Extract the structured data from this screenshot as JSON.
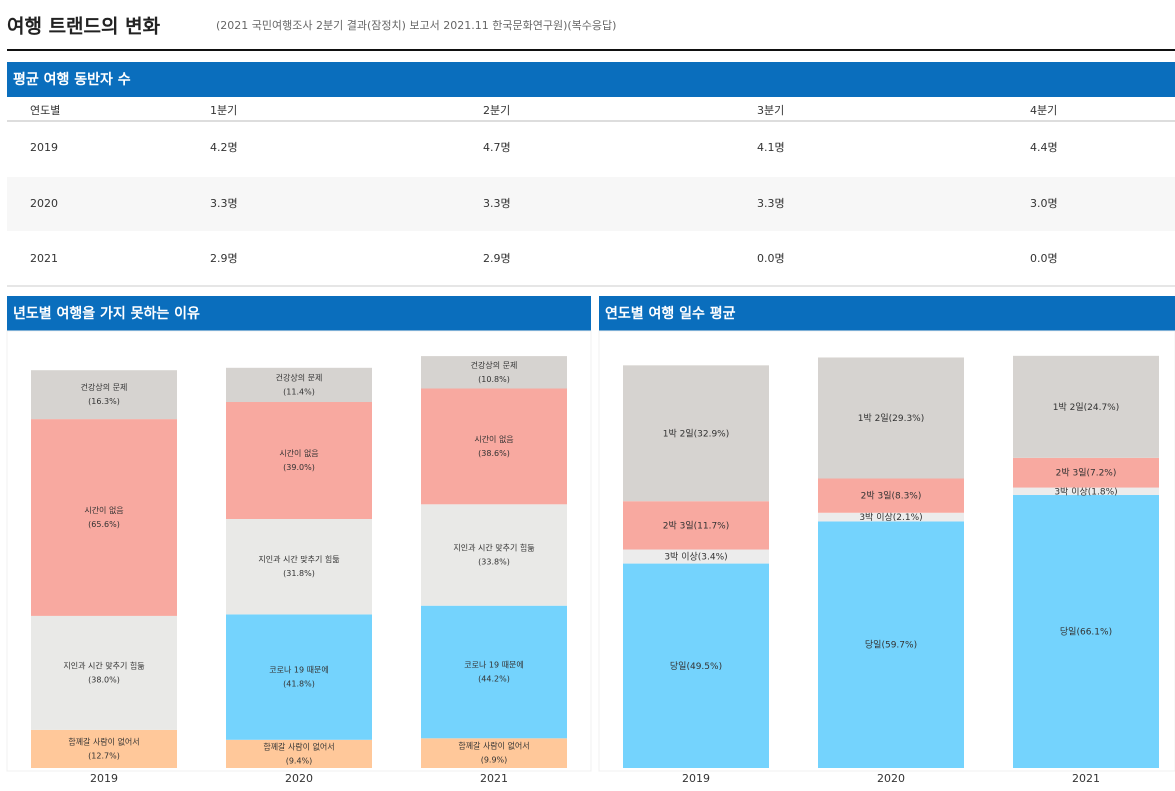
{
  "header": {
    "title": "여행 트랜드의 변화",
    "subtitle": "(2021 국민여행조사 2분기 결과(잠정치) 보고서 2021.11 한국문화연구원)(복수응답)"
  },
  "table": {
    "title": "평균 여행 동반자 수",
    "columns": [
      "연도별",
      "1분기",
      "2분기",
      "3분기",
      "4분기"
    ],
    "rows": [
      [
        "2019",
        "4.2명",
        "4.7명",
        "4.1명",
        "4.4명"
      ],
      [
        "2020",
        "3.3명",
        "3.3명",
        "3.3명",
        "3.0명"
      ],
      [
        "2021",
        "2.9명",
        "2.9명",
        "0.0명",
        "0.0명"
      ]
    ]
  },
  "chart_data": [
    {
      "type": "bar",
      "stacked": true,
      "title": "년도별 여행을 가지 못하는 이유",
      "categories": [
        "2019",
        "2020",
        "2021"
      ],
      "series": [
        {
          "name": "함께갈 사람이 없어서",
          "color": "#ffc89a",
          "values": [
            12.7,
            9.4,
            9.9
          ],
          "value_labels": [
            "(12.7%)",
            "(9.4%)",
            "(9.9%)"
          ]
        },
        {
          "name": "코로나 19 때문에",
          "color": "#74d3fd",
          "values": [
            null,
            41.8,
            44.2
          ],
          "value_labels": [
            null,
            "(41.8%)",
            "(44.2%)"
          ]
        },
        {
          "name": "지인과 시간 맞추기 힘듦",
          "color": "#e9e9e7",
          "values": [
            38.0,
            31.8,
            33.8
          ],
          "value_labels": [
            "(38.0%)",
            "(31.8%)",
            "(33.8%)"
          ]
        },
        {
          "name": "시간이 없음",
          "color": "#f8a9a0",
          "values": [
            65.6,
            39.0,
            38.6
          ],
          "value_labels": [
            "(65.6%)",
            "(39.0%)",
            "(38.6%)"
          ]
        },
        {
          "name": "건강상의 문제",
          "color": "#d6d3d0",
          "values": [
            16.3,
            11.4,
            10.8
          ],
          "value_labels": [
            "(16.3%)",
            "(11.4%)",
            "(10.8%)"
          ]
        }
      ]
    },
    {
      "type": "bar",
      "stacked": true,
      "title": "연도별 여행 일수 평균",
      "categories": [
        "2019",
        "2020",
        "2021"
      ],
      "series": [
        {
          "name": "당일",
          "color": "#74d3fd",
          "values": [
            49.5,
            59.7,
            66.1
          ],
          "value_labels": [
            "(49.5%)",
            "(59.7%)",
            "(66.1%)"
          ]
        },
        {
          "name": "3박 이상",
          "color": "#ececec",
          "values": [
            3.4,
            2.1,
            1.8
          ],
          "value_labels": [
            "(3.4%)",
            "(2.1%)",
            "(1.8%)"
          ]
        },
        {
          "name": "2박 3일",
          "color": "#f8a9a0",
          "values": [
            11.7,
            8.3,
            7.2
          ],
          "value_labels": [
            "(11.7%)",
            "(8.3%)",
            "(7.2%)"
          ]
        },
        {
          "name": "1박 2일",
          "color": "#d6d3d0",
          "values": [
            32.9,
            29.3,
            24.7
          ],
          "value_labels": [
            "(32.9%)",
            "(29.3%)",
            "(24.7%)"
          ]
        }
      ]
    }
  ]
}
